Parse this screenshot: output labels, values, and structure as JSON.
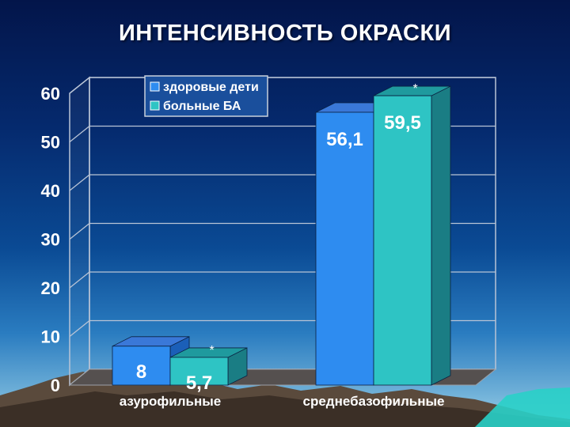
{
  "chart_data": {
    "type": "bar",
    "title": "ИНТЕНСИВНОСТЬ ОКРАСКИ",
    "categories": [
      "азурофильные",
      "среднебазофильные"
    ],
    "series": [
      {
        "name": "здоровые дети",
        "values": [
          8,
          56.1
        ],
        "labels": [
          "8",
          "56,1"
        ],
        "color": "#2e8cf0",
        "side_color": "#1b5fb8",
        "top_color": "#3a78d8"
      },
      {
        "name": "больные БА",
        "values": [
          5.7,
          59.5
        ],
        "labels": [
          "5,7",
          "59,5"
        ],
        "color": "#2ec4c4",
        "side_color": "#1a7d84",
        "top_color": "#1f9a9e"
      }
    ],
    "annotations": [
      {
        "series": 1,
        "category": 0,
        "text": "*"
      },
      {
        "series": 1,
        "category": 1,
        "text": "*"
      }
    ],
    "ylim": [
      0,
      60
    ],
    "yticks": [
      0,
      10,
      20,
      30,
      40,
      50,
      60
    ],
    "xlabel": "",
    "ylabel": "",
    "grid": true,
    "legend": "top-left"
  }
}
